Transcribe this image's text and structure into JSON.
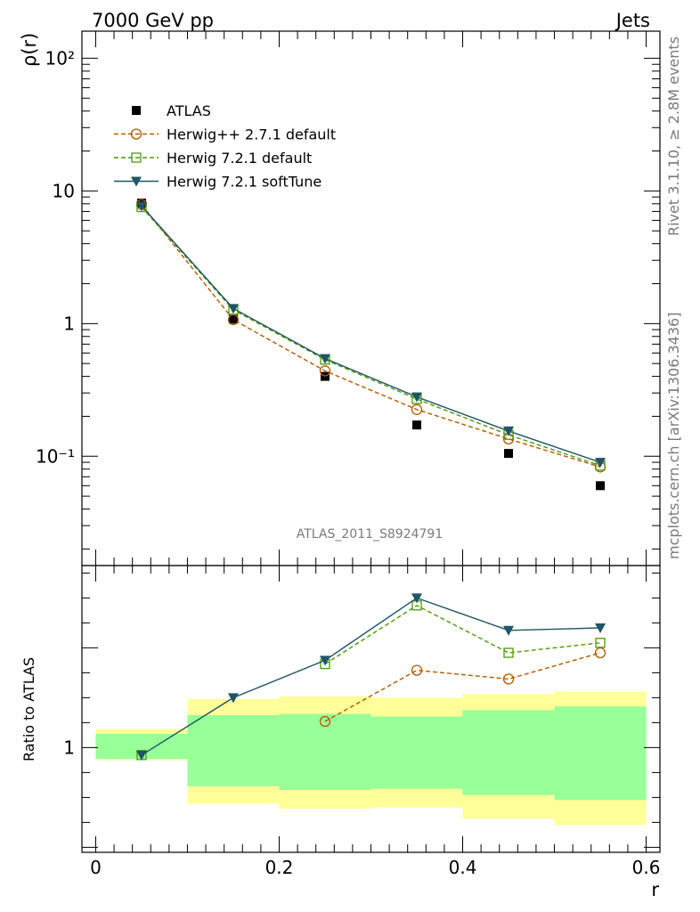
{
  "header": {
    "left": "7000 GeV pp",
    "right": "Jets"
  },
  "side_text": {
    "top": "Rivet 3.1.10, ≥ 2.8M events",
    "bottom": "mcplots.cern.ch [arXiv:1306.3436]"
  },
  "watermark": "ATLAS_2011_S8924791",
  "colors": {
    "atlas": "#000000",
    "herwigpp": "#b35900",
    "herwig_default": "#4e9a06",
    "herwig_soft": "#1f5566",
    "band_inner": "#99ff99",
    "band_outer": "#ffff99"
  },
  "chart_data": [
    {
      "type": "scatter",
      "ylabel": "ρ(r)",
      "xlabel": "",
      "yscale": "log",
      "ylim": [
        0.015,
        160
      ],
      "xlim": [
        -0.015,
        0.615
      ],
      "y_tick_labels": [
        "10⁻¹",
        "1",
        "10",
        "10²"
      ],
      "legend_position": "top-left",
      "x": [
        0.05,
        0.15,
        0.25,
        0.35,
        0.45,
        0.55
      ],
      "series": [
        {
          "name": "ATLAS",
          "marker": "filled-square",
          "values": [
            8.1,
            1.08,
            0.4,
            0.172,
            0.105,
            0.06
          ]
        },
        {
          "name": "Herwig++ 2.7.1 default",
          "marker": "open-circle",
          "line": "dashed",
          "values": [
            7.9,
            1.07,
            0.44,
            0.225,
            0.135,
            0.083
          ]
        },
        {
          "name": "Herwig 7.2.1 default",
          "marker": "open-square",
          "line": "dashed",
          "values": [
            7.55,
            1.27,
            0.535,
            0.27,
            0.145,
            0.085
          ]
        },
        {
          "name": "Herwig 7.2.1 softTune",
          "marker": "filled-triangle-down",
          "line": "solid",
          "values": [
            7.7,
            1.3,
            0.545,
            0.28,
            0.155,
            0.09
          ]
        }
      ]
    },
    {
      "type": "line",
      "ylabel": "Ratio to ATLAS",
      "xlabel": "r",
      "xlim": [
        -0.015,
        0.615
      ],
      "ylim": [
        0.58,
        1.73
      ],
      "x_tick_labels": [
        "0",
        "0.2",
        "0.4",
        "0.6"
      ],
      "y_tick_labels": [
        "1"
      ],
      "x_edges": [
        0.0,
        0.1,
        0.2,
        0.3,
        0.4,
        0.5,
        0.6
      ],
      "band_inner": [
        [
          0.955,
          1.055
        ],
        [
          0.845,
          1.13
        ],
        [
          0.83,
          1.135
        ],
        [
          0.835,
          1.125
        ],
        [
          0.81,
          1.15
        ],
        [
          0.79,
          1.165
        ]
      ],
      "band_outer": [
        [
          0.95,
          1.075
        ],
        [
          0.775,
          1.195
        ],
        [
          0.755,
          1.205
        ],
        [
          0.76,
          1.2
        ],
        [
          0.715,
          1.215
        ],
        [
          0.69,
          1.225
        ]
      ],
      "x": [
        0.05,
        0.15,
        0.25,
        0.35,
        0.45,
        0.55
      ],
      "series": [
        {
          "name": "Herwig++ 2.7.1 default",
          "values": [
            null,
            null,
            1.105,
            1.31,
            1.275,
            1.38
          ]
        },
        {
          "name": "Herwig 7.2.1 default",
          "values": [
            0.97,
            null,
            1.335,
            1.57,
            1.38,
            1.42
          ]
        },
        {
          "name": "Herwig 7.2.1 softTune",
          "values": [
            0.97,
            1.2,
            1.35,
            1.6,
            1.47,
            1.48
          ]
        }
      ]
    }
  ]
}
